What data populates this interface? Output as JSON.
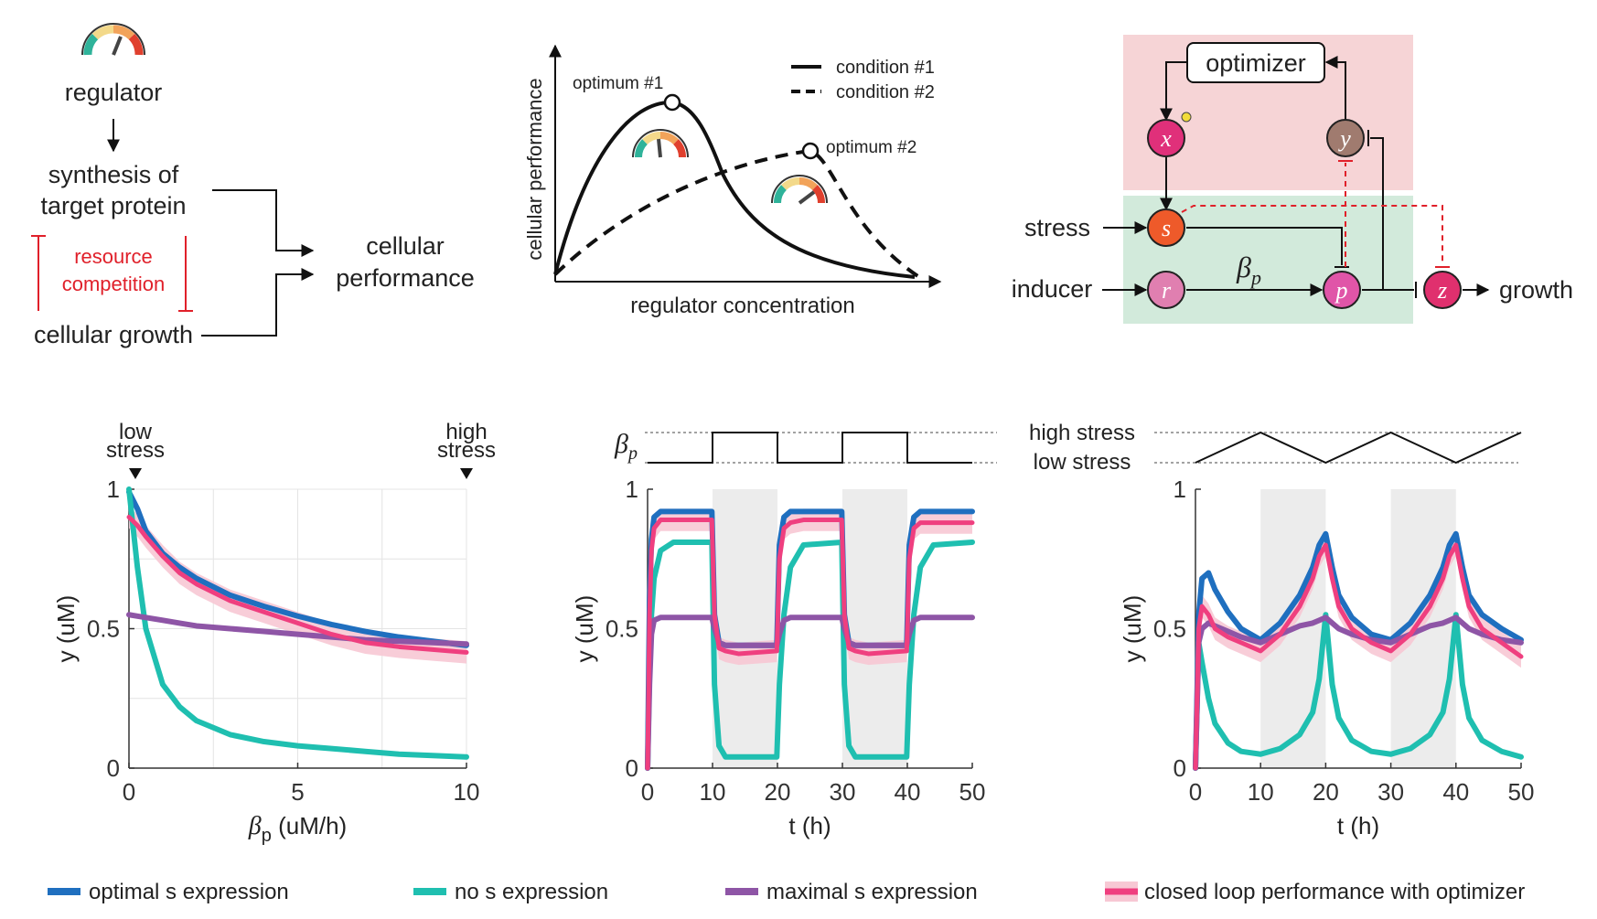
{
  "concept": {
    "regulator": "regulator",
    "synthesis_line1": "synthesis of",
    "synthesis_line2": "target protein",
    "competition_line1": "resource",
    "competition_line2": "competition",
    "growth": "cellular growth",
    "performance_line1": "cellular",
    "performance_line2": "performance"
  },
  "optimum_plot": {
    "ylabel": "cellular performance",
    "xlabel": "regulator concentration",
    "optimum1": "optimum #1",
    "optimum2": "optimum #2",
    "legend": [
      "condition #1",
      "condition #2"
    ]
  },
  "network": {
    "optimizer": "optimizer",
    "stress": "stress",
    "inducer": "inducer",
    "growth": "growth",
    "beta_symbol": "β",
    "beta_sub": "p",
    "nodes": {
      "x": "x",
      "y": "y",
      "s": "s",
      "r": "r",
      "p": "p",
      "z": "z"
    },
    "colors": {
      "optimizer_box": "#f6d4d6",
      "plant_box": "#d2eadb",
      "x": "#e0307a",
      "y": "#a07b6f",
      "s": "#ee5a2a",
      "r": "#e07fb0",
      "p": "#e055a8",
      "z": "#e0306e",
      "inhibit_dashed": "#e0202a"
    }
  },
  "panel_labels": {
    "low_stress_line1": "low",
    "low_stress_line2": "stress",
    "high_stress_line1": "high",
    "high_stress_line2": "stress",
    "beta_symbol": "β",
    "beta_sub": "p",
    "high_stress": "high stress",
    "low_stress": "low stress"
  },
  "chart_data": [
    {
      "type": "line",
      "xlabel_symbol": "β",
      "xlabel_sub": "p",
      "xlabel_rest": " (uM/h)",
      "ylabel": "y (uM)",
      "xlim": [
        0,
        10
      ],
      "ylim": [
        0,
        1
      ],
      "xticks": [
        0,
        5,
        10
      ],
      "yticks": [
        0,
        0.5,
        1
      ],
      "grid": true,
      "x": [
        0,
        0.25,
        0.5,
        1,
        1.5,
        2,
        3,
        4,
        5,
        6,
        7,
        8,
        9,
        10
      ],
      "series": [
        {
          "name": "optimal s expression",
          "values": [
            0.99,
            0.93,
            0.85,
            0.77,
            0.72,
            0.68,
            0.62,
            0.58,
            0.545,
            0.515,
            0.49,
            0.47,
            0.455,
            0.44
          ]
        },
        {
          "name": "no s expression",
          "values": [
            1.0,
            0.72,
            0.5,
            0.3,
            0.22,
            0.17,
            0.12,
            0.095,
            0.08,
            0.07,
            0.06,
            0.05,
            0.045,
            0.04
          ]
        },
        {
          "name": "maximal s expression",
          "values": [
            0.55,
            0.545,
            0.54,
            0.53,
            0.52,
            0.51,
            0.5,
            0.49,
            0.48,
            0.47,
            0.46,
            0.455,
            0.45,
            0.445
          ]
        },
        {
          "name": "closed loop performance with optimizer",
          "values": [
            0.9,
            0.87,
            0.83,
            0.76,
            0.7,
            0.66,
            0.6,
            0.56,
            0.52,
            0.48,
            0.45,
            0.435,
            0.425,
            0.415
          ]
        }
      ]
    },
    {
      "type": "line",
      "xlabel": "t (h)",
      "ylabel": "y (uM)",
      "xlim": [
        0,
        50
      ],
      "ylim": [
        0,
        1
      ],
      "xticks": [
        0,
        10,
        20,
        30,
        40,
        50
      ],
      "yticks": [
        0,
        0.5,
        1
      ],
      "shaded_intervals": [
        [
          10,
          20
        ],
        [
          30,
          40
        ]
      ],
      "input_profile": {
        "type": "square",
        "x": [
          0,
          10,
          10,
          20,
          20,
          30,
          30,
          40,
          40,
          50
        ],
        "level": [
          0,
          0,
          1,
          1,
          0,
          0,
          1,
          1,
          0,
          0
        ]
      },
      "x": [
        0,
        0.3,
        0.6,
        1,
        2,
        4,
        9.9,
        10.3,
        11,
        12,
        14,
        19.9,
        20.3,
        21,
        22,
        24,
        29.9,
        30.3,
        31,
        32,
        34,
        39.9,
        40.3,
        41,
        42,
        44,
        50
      ],
      "series": [
        {
          "name": "optimal s expression",
          "values": [
            0,
            0.6,
            0.82,
            0.9,
            0.92,
            0.92,
            0.92,
            0.55,
            0.45,
            0.44,
            0.44,
            0.44,
            0.8,
            0.9,
            0.92,
            0.92,
            0.92,
            0.55,
            0.45,
            0.44,
            0.44,
            0.44,
            0.8,
            0.9,
            0.92,
            0.92,
            0.92
          ]
        },
        {
          "name": "no s expression",
          "values": [
            0,
            0.35,
            0.55,
            0.68,
            0.78,
            0.81,
            0.81,
            0.3,
            0.08,
            0.04,
            0.04,
            0.04,
            0.3,
            0.55,
            0.72,
            0.8,
            0.81,
            0.3,
            0.08,
            0.04,
            0.04,
            0.04,
            0.3,
            0.55,
            0.72,
            0.8,
            0.81
          ]
        },
        {
          "name": "maximal s expression",
          "values": [
            0,
            0.3,
            0.48,
            0.53,
            0.54,
            0.54,
            0.54,
            0.5,
            0.45,
            0.44,
            0.44,
            0.44,
            0.48,
            0.53,
            0.54,
            0.54,
            0.54,
            0.5,
            0.45,
            0.44,
            0.44,
            0.44,
            0.48,
            0.53,
            0.54,
            0.54,
            0.54
          ]
        },
        {
          "name": "closed loop performance with optimizer",
          "values": [
            0,
            0.55,
            0.78,
            0.86,
            0.89,
            0.89,
            0.89,
            0.55,
            0.43,
            0.42,
            0.41,
            0.42,
            0.75,
            0.86,
            0.88,
            0.89,
            0.89,
            0.55,
            0.43,
            0.42,
            0.41,
            0.42,
            0.75,
            0.86,
            0.88,
            0.88,
            0.88
          ]
        }
      ]
    },
    {
      "type": "line",
      "xlabel": "t (h)",
      "ylabel": "y (uM)",
      "xlim": [
        0,
        50
      ],
      "ylim": [
        0,
        1
      ],
      "xticks": [
        0,
        10,
        20,
        30,
        40,
        50
      ],
      "yticks": [
        0,
        0.5,
        1
      ],
      "shaded_intervals": [
        [
          10,
          20
        ],
        [
          30,
          40
        ]
      ],
      "input_profile": {
        "type": "triangle",
        "x": [
          0,
          10,
          20,
          30,
          40,
          50
        ],
        "level": [
          0,
          1,
          0,
          1,
          0,
          1
        ]
      },
      "x": [
        0,
        0.5,
        1,
        2,
        3,
        5,
        7,
        10,
        13,
        16,
        18,
        19,
        20,
        21,
        22,
        24,
        27,
        30,
        33,
        36,
        38,
        39,
        40,
        41,
        42,
        44,
        47,
        50
      ],
      "series": [
        {
          "name": "optimal s expression",
          "values": [
            0,
            0.55,
            0.68,
            0.7,
            0.64,
            0.56,
            0.5,
            0.46,
            0.52,
            0.62,
            0.72,
            0.8,
            0.84,
            0.72,
            0.62,
            0.54,
            0.48,
            0.46,
            0.52,
            0.62,
            0.72,
            0.8,
            0.84,
            0.72,
            0.62,
            0.55,
            0.5,
            0.46
          ]
        },
        {
          "name": "no s expression",
          "values": [
            0,
            0.45,
            0.38,
            0.25,
            0.16,
            0.09,
            0.06,
            0.05,
            0.07,
            0.12,
            0.2,
            0.32,
            0.55,
            0.3,
            0.18,
            0.1,
            0.06,
            0.05,
            0.07,
            0.12,
            0.2,
            0.32,
            0.55,
            0.3,
            0.18,
            0.1,
            0.06,
            0.04
          ]
        },
        {
          "name": "maximal s expression",
          "values": [
            0,
            0.45,
            0.5,
            0.52,
            0.51,
            0.49,
            0.47,
            0.45,
            0.48,
            0.51,
            0.52,
            0.53,
            0.54,
            0.52,
            0.5,
            0.48,
            0.46,
            0.45,
            0.48,
            0.51,
            0.52,
            0.53,
            0.54,
            0.52,
            0.5,
            0.48,
            0.46,
            0.45
          ]
        },
        {
          "name": "closed loop performance with optimizer",
          "values": [
            0,
            0.5,
            0.58,
            0.55,
            0.5,
            0.47,
            0.45,
            0.42,
            0.48,
            0.58,
            0.68,
            0.76,
            0.8,
            0.68,
            0.58,
            0.5,
            0.45,
            0.42,
            0.48,
            0.58,
            0.68,
            0.76,
            0.8,
            0.68,
            0.58,
            0.5,
            0.45,
            0.4
          ]
        }
      ]
    }
  ],
  "legend": {
    "items": [
      {
        "label": "optimal s expression",
        "color": "#1f6fbf"
      },
      {
        "label": "no s expression",
        "color": "#1fbfb0"
      },
      {
        "label": "maximal s expression",
        "color": "#8e55a6"
      },
      {
        "label": "closed loop performance with optimizer",
        "color": "#ef3f7f"
      }
    ]
  },
  "colors": {
    "optimal": "#1f6fbf",
    "none": "#1fbfb0",
    "maximal": "#8e55a6",
    "closed_loop": "#ef3f7f",
    "closed_loop_band": "#f7c8d4",
    "shade": "#ececec"
  }
}
